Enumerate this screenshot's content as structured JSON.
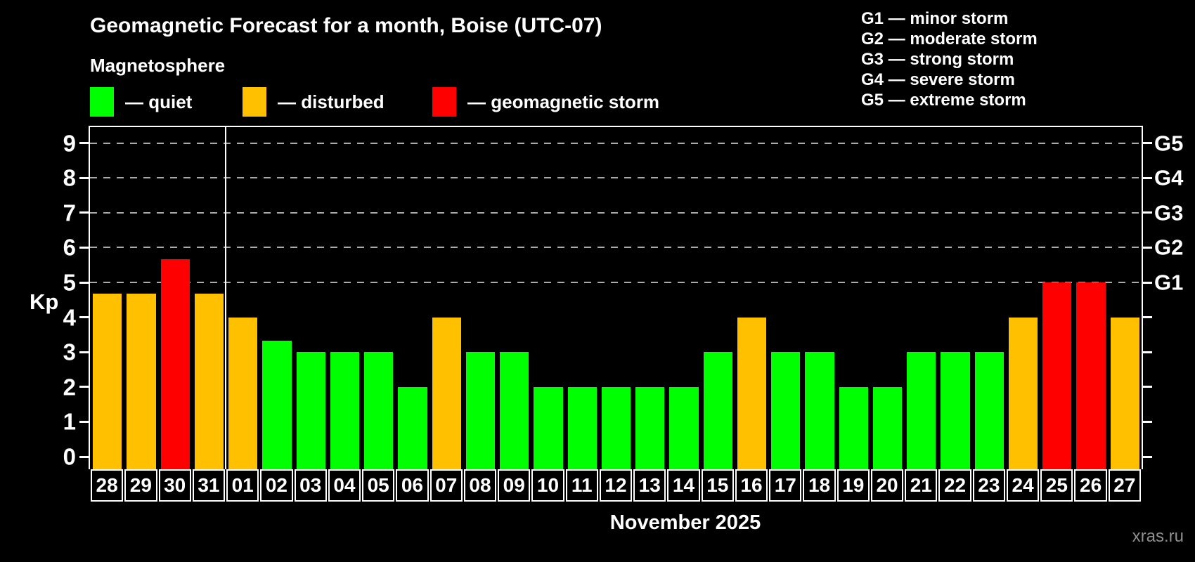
{
  "title": "Geomagnetic Forecast for a month, Boise (UTC-07)",
  "subtitle": "Magnetosphere",
  "legend": {
    "items": [
      {
        "key": "quiet",
        "label": "— quiet",
        "color": "#00ff00"
      },
      {
        "key": "disturbed",
        "label": "— disturbed",
        "color": "#ffc000"
      },
      {
        "key": "storm",
        "label": "— geomagnetic storm",
        "color": "#ff0000"
      }
    ]
  },
  "storm_scale": {
    "items": [
      "G1 — minor storm",
      "G2 — moderate storm",
      "G3 — strong storm",
      "G4 — severe storm",
      "G5 — extreme storm"
    ]
  },
  "chart_data": {
    "type": "bar",
    "title": "Geomagnetic Forecast for a month, Boise (UTC-07)",
    "ylabel": "Kp",
    "xlabel": "November 2025",
    "ylim": [
      0,
      9
    ],
    "grid": "dashed horizontal at Kp 5-9 only",
    "gridline_values": [
      5,
      6,
      7,
      8,
      9
    ],
    "y_ticks": [
      0,
      1,
      2,
      3,
      4,
      5,
      6,
      7,
      8,
      9
    ],
    "right_axis_labels": [
      {
        "text": "G1",
        "kp": 5
      },
      {
        "text": "G2",
        "kp": 6
      },
      {
        "text": "G3",
        "kp": 7
      },
      {
        "text": "G4",
        "kp": 8
      },
      {
        "text": "G5",
        "kp": 9
      }
    ],
    "categories": [
      "28",
      "29",
      "30",
      "31",
      "01",
      "02",
      "03",
      "04",
      "05",
      "06",
      "07",
      "08",
      "09",
      "10",
      "11",
      "12",
      "13",
      "14",
      "15",
      "16",
      "17",
      "18",
      "19",
      "20",
      "21",
      "22",
      "23",
      "24",
      "25",
      "26",
      "27"
    ],
    "values": [
      4.67,
      4.67,
      5.67,
      4.67,
      4,
      3.33,
      3,
      3,
      3,
      2,
      4,
      3,
      3,
      2,
      2,
      2,
      2,
      2,
      3,
      4,
      3,
      3,
      2,
      2,
      3,
      3,
      3,
      4,
      5,
      5,
      4
    ],
    "conditions": [
      "disturbed",
      "disturbed",
      "storm",
      "disturbed",
      "disturbed",
      "quiet",
      "quiet",
      "quiet",
      "quiet",
      "quiet",
      "disturbed",
      "quiet",
      "quiet",
      "quiet",
      "quiet",
      "quiet",
      "quiet",
      "quiet",
      "quiet",
      "disturbed",
      "quiet",
      "quiet",
      "quiet",
      "quiet",
      "quiet",
      "quiet",
      "quiet",
      "disturbed",
      "storm",
      "storm",
      "disturbed"
    ],
    "month_boundary_after_index": 3,
    "legend_position": "top-left and top-right"
  },
  "footer": {
    "month_label": "November 2025",
    "watermark": "xras.ru"
  },
  "colors": {
    "background": "#000000",
    "text": "#ffffff",
    "axis": "#ffffff",
    "gridline": "#aaaaaa",
    "quiet": "#00ff00",
    "disturbed": "#ffc000",
    "storm": "#ff0000",
    "watermark": "#8f8f8f"
  }
}
